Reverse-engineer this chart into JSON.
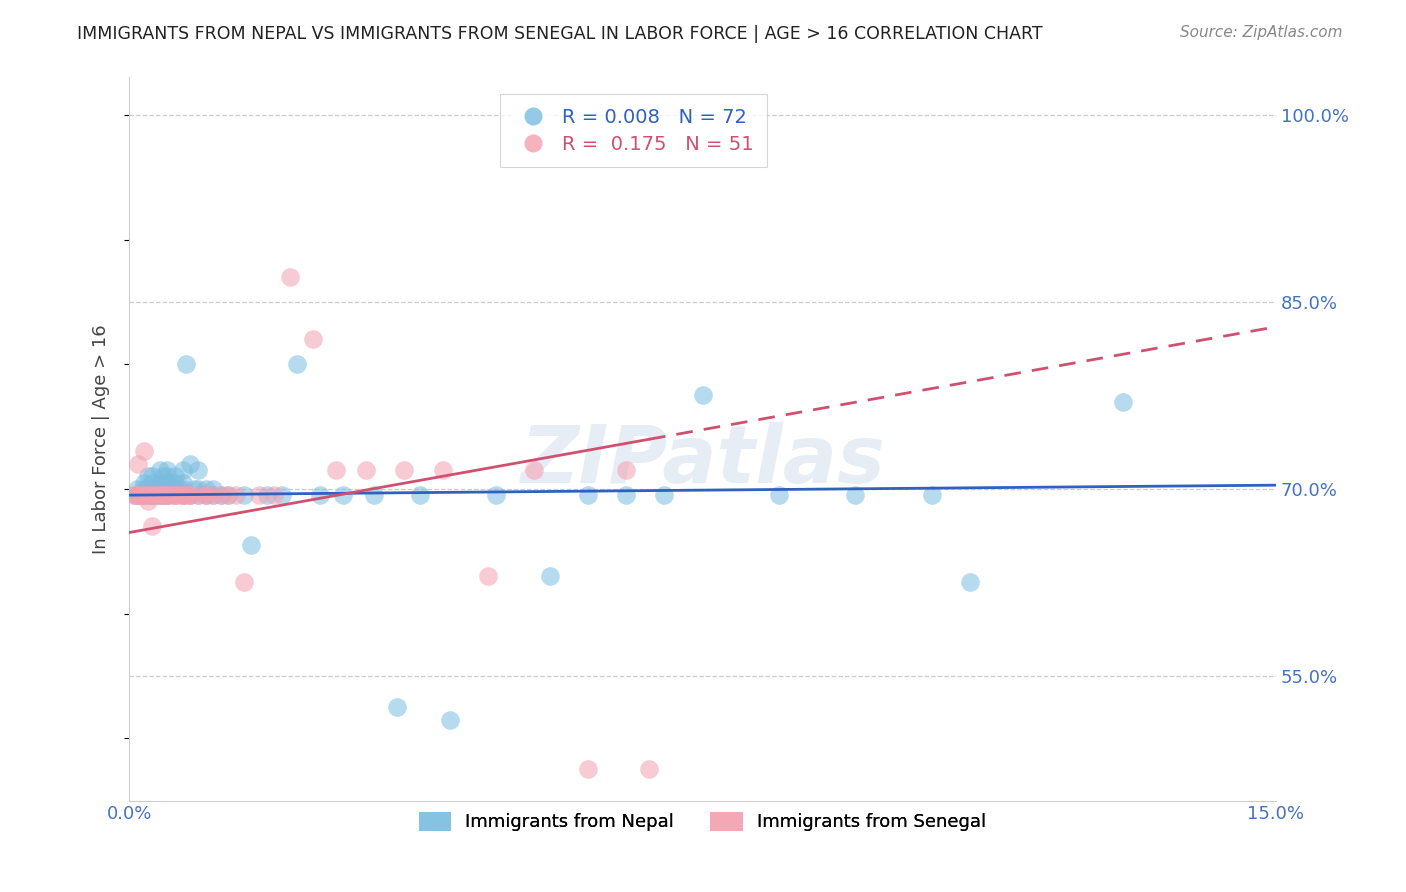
{
  "title": "IMMIGRANTS FROM NEPAL VS IMMIGRANTS FROM SENEGAL IN LABOR FORCE | AGE > 16 CORRELATION CHART",
  "source": "Source: ZipAtlas.com",
  "ylabel": "In Labor Force | Age > 16",
  "xlim": [
    0.0,
    0.15
  ],
  "ylim": [
    0.45,
    1.03
  ],
  "y_tick_positions_right": [
    1.0,
    0.85,
    0.7,
    0.55
  ],
  "y_tick_labels_right": [
    "100.0%",
    "85.0%",
    "70.0%",
    "55.0%"
  ],
  "color_nepal": "#7bbde0",
  "color_senegal": "#f4a0b0",
  "color_nepal_line": "#3060c0",
  "color_senegal_line": "#d05070",
  "watermark": "ZIPatlas",
  "nepal_x": [
    0.0008,
    0.001,
    0.0012,
    0.0015,
    0.0018,
    0.002,
    0.002,
    0.0022,
    0.0025,
    0.0025,
    0.003,
    0.003,
    0.003,
    0.003,
    0.0035,
    0.0035,
    0.004,
    0.004,
    0.004,
    0.004,
    0.0045,
    0.0045,
    0.005,
    0.005,
    0.005,
    0.005,
    0.005,
    0.0055,
    0.006,
    0.006,
    0.006,
    0.006,
    0.0065,
    0.007,
    0.007,
    0.007,
    0.007,
    0.0075,
    0.008,
    0.008,
    0.0085,
    0.009,
    0.009,
    0.009,
    0.01,
    0.01,
    0.011,
    0.011,
    0.012,
    0.013,
    0.015,
    0.016,
    0.018,
    0.02,
    0.022,
    0.025,
    0.028,
    0.032,
    0.035,
    0.038,
    0.042,
    0.048,
    0.055,
    0.06,
    0.065,
    0.07,
    0.075,
    0.085,
    0.095,
    0.105,
    0.11,
    0.13
  ],
  "nepal_y": [
    0.695,
    0.7,
    0.695,
    0.695,
    0.7,
    0.695,
    0.705,
    0.7,
    0.695,
    0.71,
    0.695,
    0.7,
    0.705,
    0.71,
    0.695,
    0.7,
    0.695,
    0.7,
    0.705,
    0.715,
    0.695,
    0.71,
    0.695,
    0.7,
    0.705,
    0.71,
    0.715,
    0.705,
    0.695,
    0.7,
    0.705,
    0.71,
    0.7,
    0.695,
    0.7,
    0.705,
    0.715,
    0.8,
    0.695,
    0.72,
    0.7,
    0.695,
    0.7,
    0.715,
    0.695,
    0.7,
    0.695,
    0.7,
    0.695,
    0.695,
    0.695,
    0.655,
    0.695,
    0.695,
    0.8,
    0.695,
    0.695,
    0.695,
    0.525,
    0.695,
    0.515,
    0.695,
    0.63,
    0.695,
    0.695,
    0.695,
    0.775,
    0.695,
    0.695,
    0.695,
    0.625,
    0.77
  ],
  "senegal_x": [
    0.0005,
    0.001,
    0.001,
    0.0012,
    0.0015,
    0.002,
    0.002,
    0.002,
    0.0025,
    0.0025,
    0.003,
    0.003,
    0.003,
    0.003,
    0.0035,
    0.004,
    0.004,
    0.0045,
    0.005,
    0.005,
    0.005,
    0.0055,
    0.006,
    0.006,
    0.0065,
    0.007,
    0.007,
    0.0075,
    0.008,
    0.008,
    0.009,
    0.01,
    0.01,
    0.011,
    0.012,
    0.013,
    0.014,
    0.015,
    0.017,
    0.019,
    0.021,
    0.024,
    0.027,
    0.031,
    0.036,
    0.041,
    0.047,
    0.053,
    0.06,
    0.065,
    0.068
  ],
  "senegal_y": [
    0.695,
    0.695,
    0.695,
    0.72,
    0.695,
    0.695,
    0.695,
    0.73,
    0.695,
    0.69,
    0.695,
    0.695,
    0.695,
    0.67,
    0.695,
    0.695,
    0.695,
    0.695,
    0.695,
    0.695,
    0.695,
    0.695,
    0.695,
    0.695,
    0.695,
    0.695,
    0.695,
    0.695,
    0.695,
    0.695,
    0.695,
    0.695,
    0.695,
    0.695,
    0.695,
    0.695,
    0.695,
    0.625,
    0.695,
    0.695,
    0.87,
    0.82,
    0.715,
    0.715,
    0.715,
    0.715,
    0.63,
    0.715,
    0.475,
    0.715,
    0.475
  ],
  "nepal_R": 0.008,
  "nepal_N": 72,
  "senegal_R": 0.175,
  "senegal_N": 51
}
